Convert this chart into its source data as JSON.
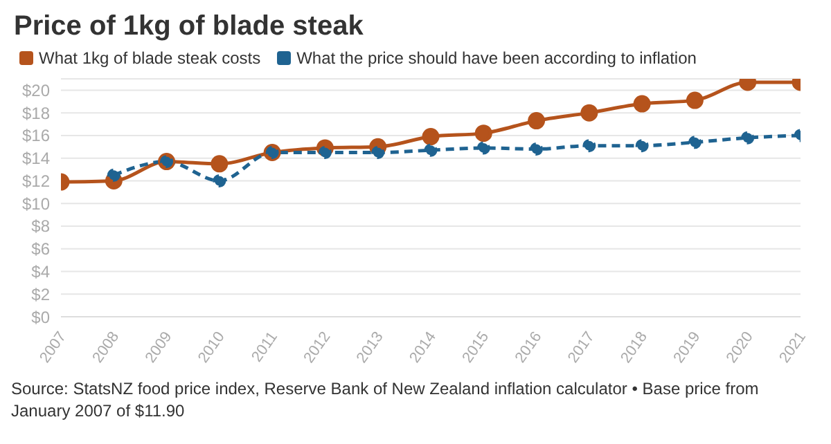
{
  "chart_data": {
    "type": "line",
    "title": "Price of 1kg of blade steak",
    "categories": [
      "2007",
      "2008",
      "2009",
      "2010",
      "2011",
      "2012",
      "2013",
      "2014",
      "2015",
      "2016",
      "2017",
      "2018",
      "2019",
      "2020",
      "2021"
    ],
    "series": [
      {
        "name": "What 1kg of blade steak costs",
        "color": "#b5531c",
        "line_style": "solid",
        "values": [
          11.9,
          12.0,
          13.7,
          13.5,
          14.5,
          14.9,
          15.0,
          15.9,
          16.2,
          17.3,
          18.0,
          18.8,
          19.1,
          20.7,
          20.7
        ]
      },
      {
        "name": "What the price should have been according to inflation",
        "color": "#1f6391",
        "line_style": "dashed",
        "values": [
          null,
          12.5,
          13.7,
          12.0,
          14.5,
          14.5,
          14.5,
          14.7,
          14.9,
          14.8,
          15.1,
          15.1,
          15.4,
          15.8,
          16.0
        ]
      }
    ],
    "ylim": [
      0,
      21
    ],
    "yticks": [
      {
        "value": 0,
        "label": "$0"
      },
      {
        "value": 2,
        "label": "$2"
      },
      {
        "value": 4,
        "label": "$4"
      },
      {
        "value": 6,
        "label": "$6"
      },
      {
        "value": 8,
        "label": "$8"
      },
      {
        "value": 10,
        "label": "$10"
      },
      {
        "value": 12,
        "label": "$12"
      },
      {
        "value": 14,
        "label": "$14"
      },
      {
        "value": 16,
        "label": "$16"
      },
      {
        "value": 18,
        "label": "$18"
      },
      {
        "value": 20,
        "label": "$20"
      }
    ],
    "grid": "y",
    "legend": "top left",
    "marker": "circle",
    "annotations": [
      "Source: StatsNZ food price index, Reserve Bank of New Zealand inflation calculator • Base price from January 2007 of $11.90"
    ]
  }
}
